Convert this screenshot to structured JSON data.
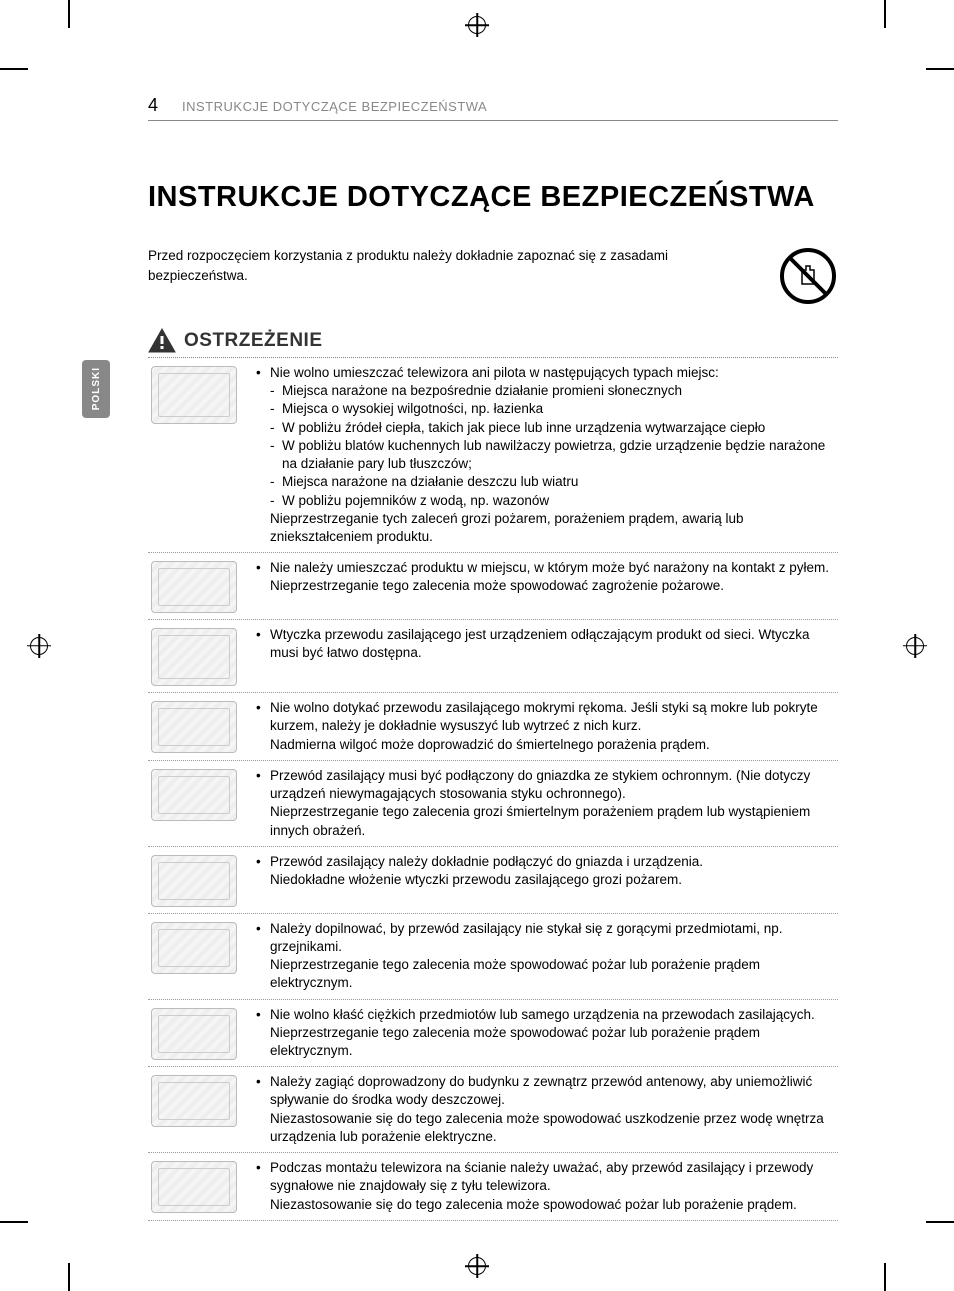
{
  "page_number": "4",
  "header_text": "INSTRUKCJE DOTYCZĄCE BEZPIECZEŃSTWA",
  "main_title": "INSTRUKCJE DOTYCZĄCE BEZPIECZEŃSTWA",
  "intro_text": "Przed rozpoczęciem korzystania z produktu należy dokładnie zapoznać się z zasadami bezpieczeństwa.",
  "warning_label": "OSTRZEŻENIE",
  "language_tab": "POLSKI",
  "colors": {
    "text": "#000000",
    "muted_text": "#888888",
    "divider": "#999999",
    "tab_bg": "#888888",
    "tab_text": "#ffffff",
    "background": "#ffffff"
  },
  "typography": {
    "body_fontsize": 13.5,
    "title_fontsize": 29,
    "warning_fontsize": 19,
    "header_fontsize": 13,
    "page_num_fontsize": 18
  },
  "warnings": [
    {
      "main": "Nie wolno umieszczać telewizora ani pilota w następujących typach miejsc:",
      "sub": [
        "Miejsca narażone na bezpośrednie działanie promieni słonecznych",
        "Miejsca o wysokiej wilgotności, np. łazienka",
        "W pobliżu źródeł ciepła, takich jak piece lub inne urządzenia wytwarzające ciepło",
        "W pobliżu blatów kuchennych lub nawilżaczy powietrza, gdzie urządzenie będzie narażone na działanie pary lub tłuszczów;",
        "Miejsca narażone na działanie deszczu lub wiatru",
        "W pobliżu pojemników z wodą, np. wazonów"
      ],
      "after": "Nieprzestrzeganie tych zaleceń grozi pożarem, porażeniem prądem, awarią lub zniekształceniem produktu."
    },
    {
      "main": "Nie należy umieszczać produktu w miejscu, w którym może być narażony na kontakt z pyłem.",
      "after": "Nieprzestrzeganie tego zalecenia może spowodować zagrożenie pożarowe."
    },
    {
      "main": "Wtyczka przewodu zasilającego jest urządzeniem odłączającym produkt od sieci. Wtyczka musi być łatwo dostępna."
    },
    {
      "main": "Nie wolno dotykać przewodu zasilającego mokrymi rękoma. Jeśli styki są mokre lub pokryte kurzem, należy je dokładnie wysuszyć lub wytrzeć z nich kurz.",
      "after": "Nadmierna wilgoć może doprowadzić do śmiertelnego porażenia prądem."
    },
    {
      "main": "Przewód zasilający musi być podłączony do gniazdka ze stykiem ochronnym. (Nie dotyczy urządzeń niewymagających stosowania styku ochronnego).",
      "after": "Nieprzestrzeganie tego zalecenia grozi śmiertelnym porażeniem prądem lub wystąpieniem innych obrażeń."
    },
    {
      "main": "Przewód zasilający należy dokładnie podłączyć do gniazda i urządzenia.",
      "after": "Niedokładne włożenie wtyczki przewodu zasilającego grozi pożarem."
    },
    {
      "main": "Należy dopilnować, by przewód zasilający nie stykał się z gorącymi przedmiotami, np. grzejnikami.",
      "after": "Nieprzestrzeganie tego zalecenia może spowodować pożar lub porażenie prądem elektrycznym."
    },
    {
      "main": "Nie wolno kłaść ciężkich przedmiotów lub samego urządzenia na przewodach zasilających.",
      "after": "Nieprzestrzeganie tego zalecenia może spowodować pożar lub porażenie prądem elektrycznym."
    },
    {
      "main": "Należy zagiąć doprowadzony do budynku z zewnątrz przewód antenowy, aby uniemożliwić spływanie do środka wody deszczowej.",
      "after": "Niezastosowanie się do tego zalecenia może spowodować uszkodzenie przez wodę wnętrza urządzenia lub porażenie elektryczne."
    },
    {
      "main": "Podczas montażu telewizora na ścianie należy uważać, aby przewód zasilający i przewody sygnałowe nie znajdowały się z tyłu telewizora.",
      "after": "Niezastosowanie się do tego zalecenia może spowodować pożar lub porażenie prądem."
    }
  ]
}
